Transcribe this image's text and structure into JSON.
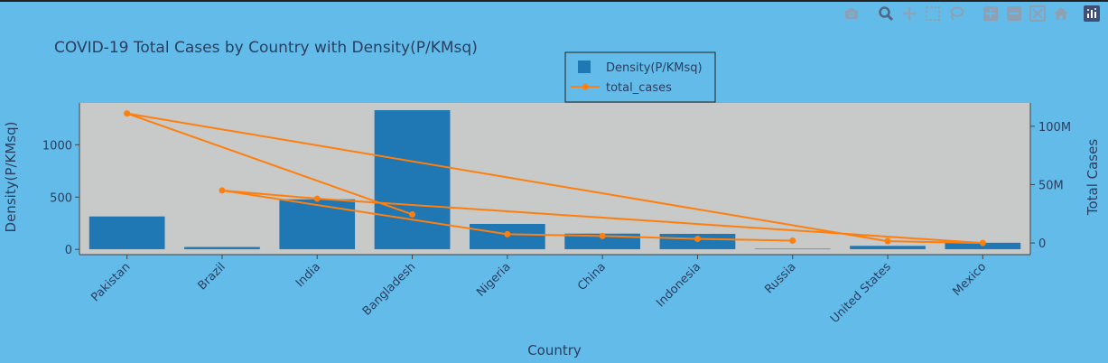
{
  "chart_data": {
    "type": "bar+line",
    "title": "COVID-19 Total Cases by Country with Density(P/KMsq)",
    "xlabel": "Country",
    "ylabel_left": "Density(P/KMsq)",
    "ylabel_right": "Total Cases",
    "categories": [
      "Pakistan",
      "Brazil",
      "India",
      "Bangladesh",
      "Nigeria",
      "China",
      "Indonesia",
      "Russia",
      "United States",
      "Mexico"
    ],
    "ylim_left": [
      -50,
      1400
    ],
    "ylim_right": [
      -10000000,
      120000000
    ],
    "left_ticks": [
      0,
      500,
      1000
    ],
    "right_ticks": [
      {
        "value": 0,
        "label": "0"
      },
      {
        "value": 50000000,
        "label": "50M"
      },
      {
        "value": 100000000,
        "label": "100M"
      }
    ],
    "legend_position": "top-center",
    "grid": false,
    "plot_background": "#c8c9c9",
    "series": [
      {
        "name": "Density(P/KMsq)",
        "kind": "bar",
        "axis": "left",
        "color": "#1f77b4",
        "values": [
          317,
          25,
          481,
          1333,
          246,
          153,
          151,
          9,
          36,
          66
        ]
      },
      {
        "name": "total_cases",
        "kind": "line",
        "axis": "right",
        "color": "#ff7f0e",
        "points": [
          {
            "x": "Bangladesh",
            "y": 24500000
          },
          {
            "x": "Pakistan",
            "y": 111000000
          },
          {
            "x": "United States",
            "y": 1500000
          },
          {
            "x": "Mexico",
            "y": 0
          },
          {
            "x": "India",
            "y": 38000000
          },
          {
            "x": "Brazil",
            "y": 45000000
          },
          {
            "x": "Nigeria",
            "y": 7500000
          },
          {
            "x": "China",
            "y": 6000000
          },
          {
            "x": "Indonesia",
            "y": 3500000
          },
          {
            "x": "Russia",
            "y": 2000000
          }
        ]
      }
    ]
  },
  "modebar": {
    "icons": [
      "camera-icon",
      "zoom-icon",
      "pan-icon",
      "box-select-icon",
      "lasso-icon",
      "zoom-in-icon",
      "zoom-out-icon",
      "autoscale-icon",
      "reset-axes-icon",
      "plotly-logo-icon"
    ],
    "icon_color": "#8ea0b4",
    "active_color": "#506784"
  }
}
